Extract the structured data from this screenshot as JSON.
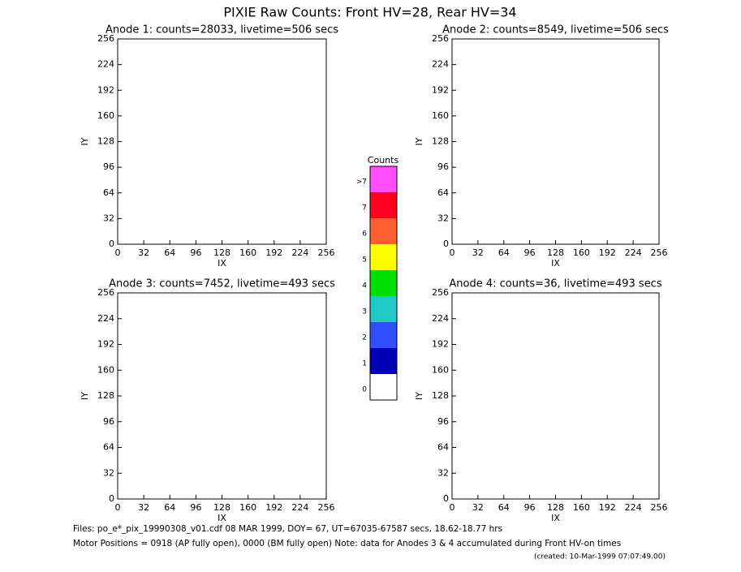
{
  "title": "PIXIE Raw Counts:  Front HV=28, Rear HV=34",
  "chart_data": [
    {
      "type": "heatmap",
      "title": "Anode 1: counts=28033, livetime=506 secs",
      "x_label": "IX",
      "y_label": "IY",
      "xlim": [
        0,
        256
      ],
      "ylim": [
        0,
        256
      ],
      "xticks": [
        0,
        32,
        64,
        96,
        128,
        160,
        192,
        224,
        256
      ],
      "yticks": [
        0,
        32,
        64,
        96,
        128,
        160,
        192,
        224,
        256
      ]
    },
    {
      "type": "heatmap",
      "title": "Anode 2: counts=8549, livetime=506 secs",
      "x_label": "IX",
      "y_label": "IY",
      "xlim": [
        0,
        256
      ],
      "ylim": [
        0,
        256
      ],
      "xticks": [
        0,
        32,
        64,
        96,
        128,
        160,
        192,
        224,
        256
      ],
      "yticks": [
        0,
        32,
        64,
        96,
        128,
        160,
        192,
        224,
        256
      ]
    },
    {
      "type": "heatmap",
      "title": "Anode 3: counts=7452, livetime=493 secs",
      "x_label": "IX",
      "y_label": "IY",
      "xlim": [
        0,
        256
      ],
      "ylim": [
        0,
        256
      ],
      "xticks": [
        0,
        32,
        64,
        96,
        128,
        160,
        192,
        224,
        256
      ],
      "yticks": [
        0,
        32,
        64,
        96,
        128,
        160,
        192,
        224,
        256
      ]
    },
    {
      "type": "heatmap",
      "title": "Anode 4: counts=36, livetime=493 secs",
      "x_label": "IX",
      "y_label": "IY",
      "xlim": [
        0,
        256
      ],
      "ylim": [
        0,
        256
      ],
      "xticks": [
        0,
        32,
        64,
        96,
        128,
        160,
        192,
        224,
        256
      ],
      "yticks": [
        0,
        32,
        64,
        96,
        128,
        160,
        192,
        224,
        256
      ]
    }
  ],
  "colorbar": {
    "title": "Counts",
    "labels": [
      "0",
      "1",
      "2",
      "3",
      "4",
      "5",
      "6",
      "7",
      ">7"
    ],
    "colors": [
      "#ffffff",
      "#0000b4",
      "#3050ff",
      "#20c8c8",
      "#00e000",
      "#ffff00",
      "#ff6030",
      "#ff0020",
      "#ff50ff"
    ]
  },
  "footer": [
    "Files: po_e*_pix_19990308_v01.cdf    08 MAR 1999, DOY= 67, UT=67035-67587 secs, 18.62-18.77 hrs",
    "Motor Positions = 0918 (AP fully open), 0000 (BM fully open)    Note: data for Anodes 3 & 4 accumulated during Front HV-on times",
    "(created: 10-Mar-1999 07:07:49.00)"
  ]
}
